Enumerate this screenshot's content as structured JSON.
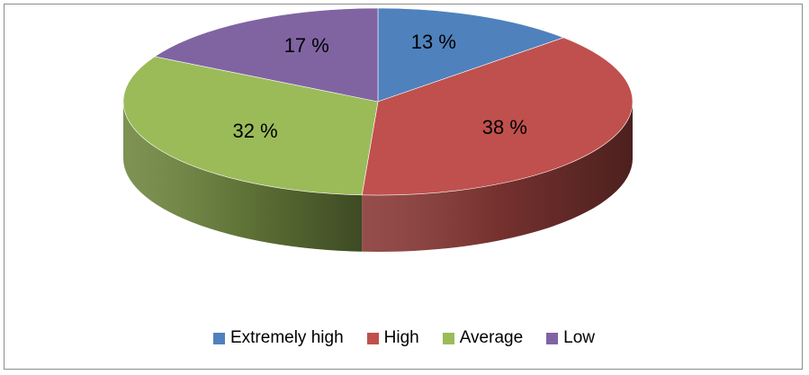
{
  "chart_data": {
    "type": "pie",
    "title": "",
    "style": "3d",
    "legend_position": "bottom",
    "slices": [
      {
        "label": "Extremely high",
        "value": 13,
        "display": "13 %",
        "color": "#4f81bd"
      },
      {
        "label": "High",
        "value": 38,
        "display": "38 %",
        "color": "#c0504d"
      },
      {
        "label": "Average",
        "value": 32,
        "display": "32 %",
        "color": "#9bbb59"
      },
      {
        "label": "Low",
        "value": 17,
        "display": "17 %",
        "color": "#8064a2"
      }
    ]
  },
  "legend": {
    "items": [
      {
        "label": "Extremely high",
        "color": "#4f81bd"
      },
      {
        "label": "High",
        "color": "#c0504d"
      },
      {
        "label": "Average",
        "color": "#9bbb59"
      },
      {
        "label": "Low",
        "color": "#8064a2"
      }
    ]
  }
}
